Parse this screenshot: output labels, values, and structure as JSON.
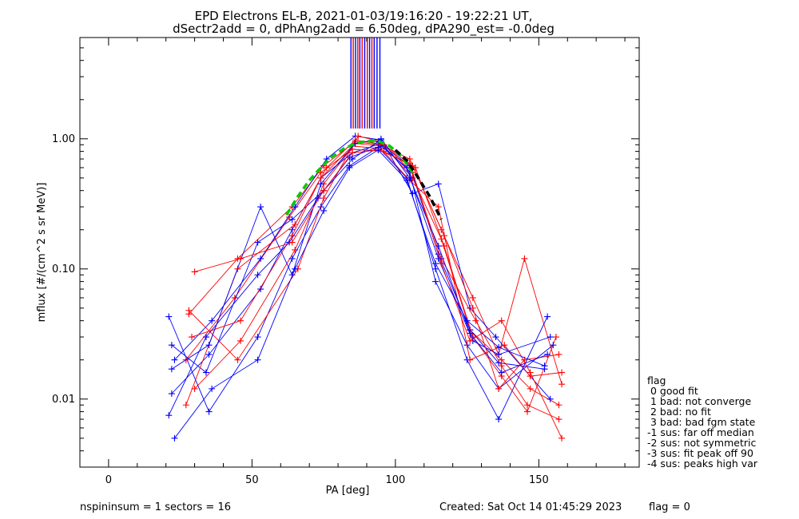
{
  "chart_data": {
    "type": "line",
    "title_line1": "EPD Electrons EL-B, 2021-01-03/19:16:20 - 19:22:21 UT,",
    "title_line2": "dSectr2add = 0, dPhAng2add = 6.50deg, dPA290_est=  -0.0deg",
    "xlabel": "PA [deg]",
    "ylabel": "mflux [#/(cm^2 s sr MeV)]",
    "xlim": [
      -10,
      185
    ],
    "ylim": [
      0.003,
      6.0
    ],
    "yscale": "log",
    "x_ticks": [
      0,
      50,
      100,
      150
    ],
    "x_tick_labels": [
      "0",
      "50",
      "100",
      "150"
    ],
    "y_ticks": [
      0.01,
      0.1,
      1.0
    ],
    "y_tick_labels": [
      "0.01",
      "0.10",
      "1.00"
    ],
    "grid": false,
    "series_colors": {
      "red": "#ff0000",
      "blue": "#0000ff",
      "fit_green": "#00cc00",
      "fit_black": "#000000"
    },
    "sample_series": [
      {
        "color": "red",
        "x": [
          30,
          46,
          65,
          75,
          86,
          96,
          106,
          116,
          126,
          137,
          147,
          157
        ],
        "y": [
          0.012,
          0.028,
          0.14,
          0.45,
          0.92,
          0.88,
          0.5,
          0.17,
          0.034,
          0.02,
          0.012,
          0.009
        ]
      },
      {
        "color": "blue",
        "x": [
          22,
          35,
          53,
          64,
          74,
          85,
          95,
          105,
          115,
          126,
          136,
          152
        ],
        "y": [
          0.011,
          0.022,
          0.07,
          0.2,
          0.5,
          0.78,
          0.92,
          0.62,
          0.13,
          0.034,
          0.019,
          0.017
        ]
      },
      {
        "color": "red",
        "x": [
          28,
          45,
          64,
          75,
          86,
          95,
          105,
          116,
          127,
          136,
          145,
          158
        ],
        "y": [
          0.045,
          0.12,
          0.3,
          0.62,
          0.95,
          0.9,
          0.7,
          0.2,
          0.06,
          0.022,
          0.12,
          0.013
        ]
      },
      {
        "color": "blue",
        "x": [
          21,
          35,
          52,
          64,
          74,
          84,
          94,
          104,
          114,
          125,
          136,
          153
        ],
        "y": [
          0.043,
          0.008,
          0.03,
          0.12,
          0.3,
          0.62,
          0.86,
          0.5,
          0.1,
          0.02,
          0.007,
          0.043
        ]
      },
      {
        "color": "red",
        "x": [
          27,
          44,
          63,
          74,
          85,
          96,
          107,
          117,
          127,
          137,
          146,
          156
        ],
        "y": [
          0.02,
          0.06,
          0.25,
          0.55,
          0.83,
          0.8,
          0.6,
          0.15,
          0.03,
          0.015,
          0.008,
          0.03
        ]
      },
      {
        "color": "blue",
        "x": [
          23,
          36,
          53,
          65,
          76,
          86,
          95,
          106,
          115,
          126,
          135,
          154
        ],
        "y": [
          0.02,
          0.04,
          0.12,
          0.3,
          0.7,
          1.05,
          0.98,
          0.38,
          0.45,
          0.05,
          0.03,
          0.01
        ]
      },
      {
        "color": "red",
        "x": [
          28,
          45,
          66,
          75,
          87,
          95,
          106,
          116,
          128,
          137,
          146,
          157
        ],
        "y": [
          0.048,
          0.02,
          0.1,
          0.35,
          1.05,
          0.95,
          0.55,
          0.12,
          0.04,
          0.018,
          0.009,
          0.007
        ]
      },
      {
        "color": "blue",
        "x": [
          22,
          34,
          52,
          64,
          75,
          85,
          94,
          105,
          114,
          125,
          136,
          155
        ],
        "y": [
          0.026,
          0.016,
          0.16,
          0.24,
          0.4,
          0.7,
          0.95,
          0.56,
          0.08,
          0.026,
          0.012,
          0.026
        ]
      },
      {
        "color": "red",
        "x": [
          29,
          46,
          64,
          74,
          85,
          95,
          105,
          115,
          126,
          138,
          147,
          158
        ],
        "y": [
          0.03,
          0.04,
          0.18,
          0.5,
          0.88,
          0.84,
          0.48,
          0.3,
          0.02,
          0.026,
          0.015,
          0.016
        ]
      },
      {
        "color": "blue",
        "x": [
          21,
          34,
          52,
          63,
          73,
          84,
          95,
          104,
          115,
          127,
          136,
          154
        ],
        "y": [
          0.0075,
          0.03,
          0.09,
          0.16,
          0.35,
          0.72,
          0.88,
          0.6,
          0.12,
          0.028,
          0.022,
          0.03
        ]
      },
      {
        "color": "red",
        "x": [
          27,
          45,
          65,
          76,
          86,
          96,
          106,
          117,
          127,
          136,
          145,
          157
        ],
        "y": [
          0.009,
          0.1,
          0.22,
          0.6,
          0.98,
          0.9,
          0.62,
          0.18,
          0.05,
          0.012,
          0.02,
          0.022
        ]
      },
      {
        "color": "blue",
        "x": [
          22,
          35,
          53,
          64,
          74,
          86,
          95,
          105,
          115,
          126,
          137,
          153
        ],
        "y": [
          0.017,
          0.026,
          0.3,
          0.09,
          0.45,
          0.92,
          1.0,
          0.5,
          0.15,
          0.032,
          0.016,
          0.022
        ]
      },
      {
        "color": "red",
        "x": [
          30,
          46,
          64,
          75,
          85,
          94,
          105,
          116,
          126,
          137,
          147,
          158
        ],
        "y": [
          0.095,
          0.12,
          0.16,
          0.4,
          0.78,
          0.82,
          0.65,
          0.11,
          0.028,
          0.04,
          0.016,
          0.005
        ]
      },
      {
        "color": "blue",
        "x": [
          23,
          36,
          52,
          65,
          75,
          84,
          94,
          104,
          114,
          125,
          136,
          152
        ],
        "y": [
          0.005,
          0.012,
          0.02,
          0.1,
          0.28,
          0.6,
          0.82,
          0.48,
          0.11,
          0.04,
          0.025,
          0.018
        ]
      }
    ],
    "fit_curves": [
      {
        "color": "fit_green",
        "x": [
          62,
          66,
          70,
          74,
          78,
          82,
          86,
          90,
          94,
          98,
          102,
          106
        ],
        "y": [
          0.26,
          0.36,
          0.48,
          0.6,
          0.73,
          0.84,
          0.92,
          0.96,
          0.96,
          0.88,
          0.74,
          0.55
        ]
      },
      {
        "color": "fit_black",
        "x": [
          100,
          104,
          108,
          112,
          116
        ],
        "y": [
          0.82,
          0.68,
          0.5,
          0.36,
          0.24
        ]
      }
    ],
    "legend_title": "flag",
    "legend": [
      " 0 good fit",
      " 1 bad: not converge",
      " 2 bad: no fit",
      " 3 bad: bad fgm state",
      "-1 sus: far off median",
      "-2 sus: not symmetric",
      "-3 sus: fit peak off 90",
      "-4 sus: peaks high var"
    ]
  },
  "footer": {
    "left": "nspininsum =  1  sectors = 16",
    "center": "Created: Sat Oct 14 01:45:29 2023",
    "right": "flag = 0"
  }
}
